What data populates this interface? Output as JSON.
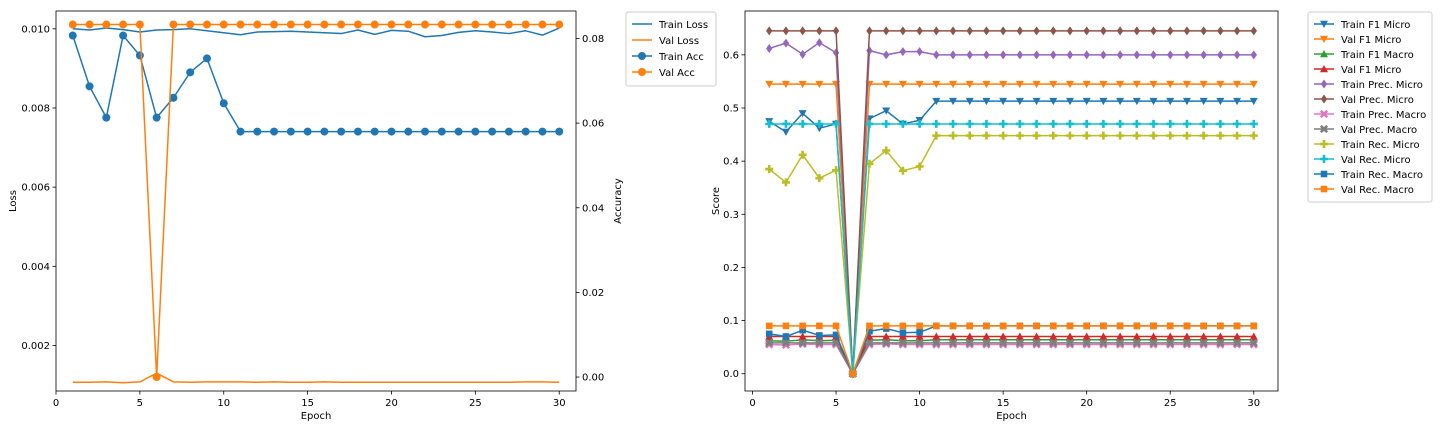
{
  "chart_data": [
    {
      "type": "line",
      "xlabel": "Epoch",
      "ylabel": "Loss",
      "y2label": "Accuracy",
      "x": [
        1,
        2,
        3,
        4,
        5,
        6,
        7,
        8,
        9,
        10,
        11,
        12,
        13,
        14,
        15,
        16,
        17,
        18,
        19,
        20,
        21,
        22,
        23,
        24,
        25,
        26,
        27,
        28,
        29,
        30
      ],
      "xlim": [
        0,
        31
      ],
      "xticks": [
        0,
        5,
        10,
        15,
        20,
        25,
        30
      ],
      "ylim": [
        0.00085,
        0.01045
      ],
      "yticks": [
        0.002,
        0.004,
        0.006,
        0.008,
        0.01
      ],
      "yticklabels": [
        "0.002",
        "0.004",
        "0.006",
        "0.008",
        "0.010"
      ],
      "y2lim": [
        -0.0033,
        0.0865
      ],
      "y2ticks": [
        0.0,
        0.02,
        0.04,
        0.06,
        0.08
      ],
      "y2ticklabels": [
        "0.00",
        "0.02",
        "0.04",
        "0.06",
        "0.08"
      ],
      "legend_position": "outside-top-right",
      "series": [
        {
          "name": "Train Loss",
          "axis": "left",
          "color": "#1f77b4",
          "marker": "none",
          "values": [
            0.01,
            0.00997,
            0.01002,
            0.00998,
            0.00992,
            0.00997,
            0.00998,
            0.01,
            0.00995,
            0.0099,
            0.00985,
            0.00992,
            0.00993,
            0.00994,
            0.00992,
            0.0099,
            0.00988,
            0.00997,
            0.00986,
            0.00996,
            0.00994,
            0.0098,
            0.00983,
            0.00991,
            0.00995,
            0.00992,
            0.00988,
            0.00995,
            0.00984,
            0.01002
          ]
        },
        {
          "name": "Val Loss",
          "axis": "left",
          "color": "#ff7f0e",
          "marker": "none",
          "values": [
            0.00107,
            0.00107,
            0.00108,
            0.00106,
            0.00108,
            0.0013,
            0.00108,
            0.00107,
            0.00108,
            0.00108,
            0.00108,
            0.00107,
            0.00108,
            0.00107,
            0.00107,
            0.00108,
            0.00107,
            0.00107,
            0.00107,
            0.00107,
            0.00107,
            0.00107,
            0.00107,
            0.00107,
            0.00107,
            0.00107,
            0.00107,
            0.00108,
            0.00108,
            0.00107
          ]
        },
        {
          "name": "Train Acc",
          "axis": "right",
          "color": "#1f77b4",
          "marker": "circle",
          "values": [
            0.0807,
            0.0687,
            0.0613,
            0.0807,
            0.076,
            0.0613,
            0.066,
            0.072,
            0.0753,
            0.0647,
            0.058,
            0.058,
            0.058,
            0.058,
            0.058,
            0.058,
            0.058,
            0.058,
            0.058,
            0.058,
            0.058,
            0.058,
            0.058,
            0.058,
            0.058,
            0.058,
            0.058,
            0.058,
            0.058,
            0.058
          ]
        },
        {
          "name": "Val Acc",
          "axis": "right",
          "color": "#ff7f0e",
          "marker": "circle",
          "values": [
            0.0833,
            0.0833,
            0.0833,
            0.0833,
            0.0833,
            0.0,
            0.0833,
            0.0833,
            0.0833,
            0.0833,
            0.0833,
            0.0833,
            0.0833,
            0.0833,
            0.0833,
            0.0833,
            0.0833,
            0.0833,
            0.0833,
            0.0833,
            0.0833,
            0.0833,
            0.0833,
            0.0833,
            0.0833,
            0.0833,
            0.0833,
            0.0833,
            0.0833,
            0.0833
          ]
        }
      ]
    },
    {
      "type": "line",
      "xlabel": "Epoch",
      "ylabel": "Score",
      "x": [
        1,
        2,
        3,
        4,
        5,
        6,
        7,
        8,
        9,
        10,
        11,
        12,
        13,
        14,
        15,
        16,
        17,
        18,
        19,
        20,
        21,
        22,
        23,
        24,
        25,
        26,
        27,
        28,
        29,
        30
      ],
      "xlim": [
        -0.45,
        31.45
      ],
      "xticks": [
        0,
        5,
        10,
        15,
        20,
        25,
        30
      ],
      "ylim": [
        -0.0325,
        0.6825
      ],
      "yticks": [
        0.0,
        0.1,
        0.2,
        0.3,
        0.4,
        0.5,
        0.6
      ],
      "yticklabels": [
        "0.0",
        "0.1",
        "0.2",
        "0.3",
        "0.4",
        "0.5",
        "0.6"
      ],
      "legend_position": "outside-top-right",
      "series": [
        {
          "name": "Train F1 Micro",
          "color": "#1f77b4",
          "marker": "triangle-down",
          "values": [
            0.475,
            0.455,
            0.49,
            0.462,
            0.47,
            0.0,
            0.48,
            0.495,
            0.47,
            0.477,
            0.513,
            0.513,
            0.513,
            0.513,
            0.513,
            0.513,
            0.513,
            0.513,
            0.513,
            0.513,
            0.513,
            0.513,
            0.513,
            0.513,
            0.513,
            0.513,
            0.513,
            0.513,
            0.513,
            0.513
          ]
        },
        {
          "name": "Val F1 Micro",
          "color": "#ff7f0e",
          "marker": "triangle-down",
          "values": [
            0.545,
            0.545,
            0.545,
            0.545,
            0.545,
            0.0,
            0.545,
            0.545,
            0.545,
            0.545,
            0.545,
            0.545,
            0.545,
            0.545,
            0.545,
            0.545,
            0.545,
            0.545,
            0.545,
            0.545,
            0.545,
            0.545,
            0.545,
            0.545,
            0.545,
            0.545,
            0.545,
            0.545,
            0.545,
            0.545
          ]
        },
        {
          "name": "Train F1 Macro",
          "color": "#2ca02c",
          "marker": "triangle-up",
          "values": [
            0.062,
            0.061,
            0.064,
            0.062,
            0.063,
            0.0,
            0.063,
            0.064,
            0.062,
            0.062,
            0.064,
            0.064,
            0.064,
            0.064,
            0.064,
            0.064,
            0.064,
            0.064,
            0.064,
            0.064,
            0.064,
            0.064,
            0.064,
            0.064,
            0.064,
            0.064,
            0.064,
            0.064,
            0.064,
            0.064
          ]
        },
        {
          "name": "Val F1 Micro",
          "color": "#d62728",
          "marker": "triangle-up",
          "values": [
            0.07,
            0.07,
            0.07,
            0.07,
            0.07,
            0.0,
            0.07,
            0.07,
            0.07,
            0.07,
            0.07,
            0.07,
            0.07,
            0.07,
            0.07,
            0.07,
            0.07,
            0.07,
            0.07,
            0.07,
            0.07,
            0.07,
            0.07,
            0.07,
            0.07,
            0.07,
            0.07,
            0.07,
            0.07,
            0.07
          ]
        },
        {
          "name": "Train Prec. Micro",
          "color": "#9467bd",
          "marker": "diamond",
          "values": [
            0.612,
            0.622,
            0.601,
            0.623,
            0.604,
            0.0,
            0.608,
            0.6,
            0.606,
            0.606,
            0.6,
            0.6,
            0.6,
            0.6,
            0.6,
            0.6,
            0.6,
            0.6,
            0.6,
            0.6,
            0.6,
            0.6,
            0.6,
            0.6,
            0.6,
            0.6,
            0.6,
            0.6,
            0.6,
            0.6
          ]
        },
        {
          "name": "Val Prec. Micro",
          "color": "#8c564b",
          "marker": "diamond",
          "values": [
            0.645,
            0.645,
            0.645,
            0.645,
            0.645,
            0.0,
            0.645,
            0.645,
            0.645,
            0.645,
            0.645,
            0.645,
            0.645,
            0.645,
            0.645,
            0.645,
            0.645,
            0.645,
            0.645,
            0.645,
            0.645,
            0.645,
            0.645,
            0.645,
            0.645,
            0.645,
            0.645,
            0.645,
            0.645,
            0.645
          ]
        },
        {
          "name": "Train Prec. Macro",
          "color": "#e377c2",
          "marker": "x",
          "values": [
            0.055,
            0.054,
            0.056,
            0.055,
            0.055,
            0.0,
            0.055,
            0.056,
            0.055,
            0.055,
            0.055,
            0.055,
            0.055,
            0.055,
            0.055,
            0.055,
            0.055,
            0.055,
            0.055,
            0.055,
            0.055,
            0.055,
            0.055,
            0.055,
            0.055,
            0.055,
            0.055,
            0.055,
            0.055,
            0.055
          ]
        },
        {
          "name": "Val Prec. Macro",
          "color": "#7f7f7f",
          "marker": "x",
          "values": [
            0.058,
            0.058,
            0.058,
            0.058,
            0.058,
            0.0,
            0.058,
            0.058,
            0.058,
            0.058,
            0.058,
            0.058,
            0.058,
            0.058,
            0.058,
            0.058,
            0.058,
            0.058,
            0.058,
            0.058,
            0.058,
            0.058,
            0.058,
            0.058,
            0.058,
            0.058,
            0.058,
            0.058,
            0.058,
            0.058
          ]
        },
        {
          "name": "Train Rec. Micro",
          "color": "#bcbd22",
          "marker": "plus",
          "values": [
            0.385,
            0.36,
            0.412,
            0.368,
            0.383,
            0.0,
            0.395,
            0.42,
            0.382,
            0.39,
            0.448,
            0.448,
            0.448,
            0.448,
            0.448,
            0.448,
            0.448,
            0.448,
            0.448,
            0.448,
            0.448,
            0.448,
            0.448,
            0.448,
            0.448,
            0.448,
            0.448,
            0.448,
            0.448,
            0.448
          ]
        },
        {
          "name": "Val Rec. Micro",
          "color": "#17becf",
          "marker": "plus",
          "values": [
            0.47,
            0.47,
            0.47,
            0.47,
            0.47,
            0.0,
            0.47,
            0.47,
            0.47,
            0.47,
            0.47,
            0.47,
            0.47,
            0.47,
            0.47,
            0.47,
            0.47,
            0.47,
            0.47,
            0.47,
            0.47,
            0.47,
            0.47,
            0.47,
            0.47,
            0.47,
            0.47,
            0.47,
            0.47,
            0.47
          ]
        },
        {
          "name": "Train Rec. Macro",
          "color": "#1f77b4",
          "marker": "square",
          "values": [
            0.075,
            0.07,
            0.082,
            0.072,
            0.073,
            0.0,
            0.08,
            0.085,
            0.077,
            0.078,
            0.09,
            0.09,
            0.09,
            0.09,
            0.09,
            0.09,
            0.09,
            0.09,
            0.09,
            0.09,
            0.09,
            0.09,
            0.09,
            0.09,
            0.09,
            0.09,
            0.09,
            0.09,
            0.09,
            0.09
          ]
        },
        {
          "name": "Val Rec. Macro",
          "color": "#ff7f0e",
          "marker": "square",
          "values": [
            0.09,
            0.09,
            0.09,
            0.09,
            0.09,
            0.0,
            0.09,
            0.09,
            0.09,
            0.09,
            0.09,
            0.09,
            0.09,
            0.09,
            0.09,
            0.09,
            0.09,
            0.09,
            0.09,
            0.09,
            0.09,
            0.09,
            0.09,
            0.09,
            0.09,
            0.09,
            0.09,
            0.09,
            0.09,
            0.09
          ]
        }
      ]
    }
  ]
}
